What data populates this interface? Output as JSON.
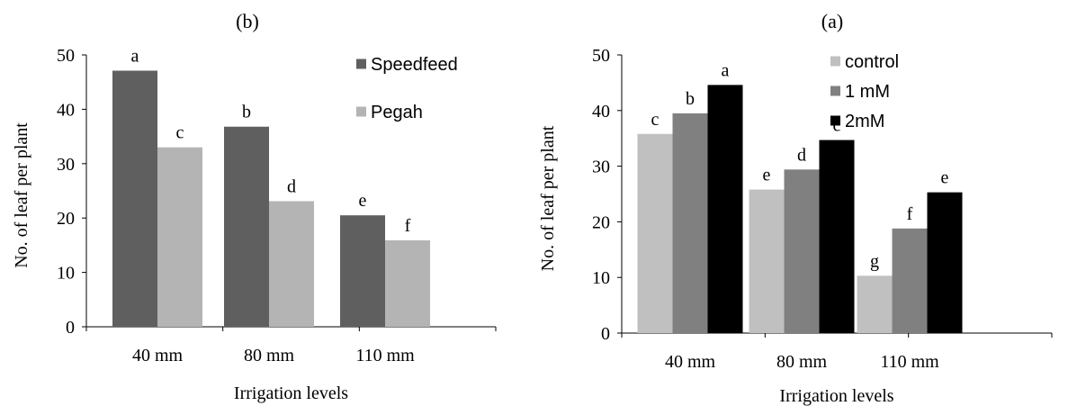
{
  "chart_data": [
    {
      "type": "bar",
      "title": "(b)",
      "xlabel": "Irrigation levels",
      "ylabel": "No. of leaf per plant",
      "ylim": [
        0,
        50
      ],
      "yticks": [
        0,
        10,
        20,
        30,
        40,
        50
      ],
      "grid": false,
      "legend_position": "top-right",
      "categories": [
        "40 mm",
        "80 mm",
        "110 mm"
      ],
      "series": [
        {
          "name": "Speedfeed",
          "color": "#5f5f5f",
          "values": [
            47.1,
            36.8,
            20.5
          ],
          "labels": [
            "a",
            "b",
            "e"
          ]
        },
        {
          "name": "Pegah",
          "color": "#b4b4b4",
          "values": [
            33.0,
            23.1,
            15.9
          ],
          "labels": [
            "c",
            "d",
            "f"
          ]
        }
      ]
    },
    {
      "type": "bar",
      "title": "(a)",
      "xlabel": "Irrigation levels",
      "ylabel": "No. of leaf per plant",
      "ylim": [
        0,
        50
      ],
      "yticks": [
        0,
        10,
        20,
        30,
        40,
        50
      ],
      "grid": false,
      "legend_position": "top-right",
      "categories": [
        "40 mm",
        "80 mm",
        "110 mm"
      ],
      "series": [
        {
          "name": "control",
          "color": "#c0c0c0",
          "values": [
            35.8,
            25.8,
            10.3
          ],
          "labels": [
            "c",
            "e",
            "g"
          ]
        },
        {
          "name": "1 mM",
          "color": "#808080",
          "values": [
            39.5,
            29.4,
            18.8
          ],
          "labels": [
            "b",
            "d",
            "f"
          ]
        },
        {
          "name": "2mM",
          "color": "#000000",
          "values": [
            44.6,
            34.7,
            25.3
          ],
          "labels": [
            "a",
            "c",
            "e"
          ]
        }
      ]
    }
  ]
}
